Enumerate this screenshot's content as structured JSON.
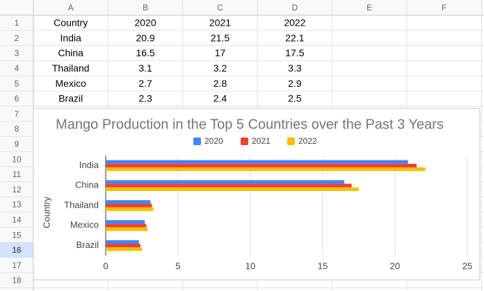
{
  "sheet": {
    "columns": [
      "A",
      "B",
      "C",
      "D",
      "E",
      "F"
    ],
    "row_numbers": [
      "1",
      "2",
      "3",
      "4",
      "5",
      "6",
      "7",
      "8",
      "9",
      "10",
      "11",
      "12",
      "13",
      "14",
      "15",
      "16",
      "17",
      "18"
    ],
    "rows": [
      [
        "Country",
        "2020",
        "2021",
        "2022"
      ],
      [
        "India",
        "20.9",
        "21.5",
        "22.1"
      ],
      [
        "China",
        "16.5",
        "17",
        "17.5"
      ],
      [
        "Thailand",
        "3.1",
        "3.2",
        "3.3"
      ],
      [
        "Mexico",
        "2.7",
        "2.8",
        "2.9"
      ],
      [
        "Brazil",
        "2.3",
        "2.4",
        "2.5"
      ]
    ]
  },
  "chart_data": {
    "type": "bar",
    "orientation": "horizontal",
    "title": "Mango Production in the Top 5 Countries over the Past 3 Years",
    "y_label": "Country",
    "categories": [
      "India",
      "China",
      "Thailand",
      "Mexico",
      "Brazil"
    ],
    "series": [
      {
        "name": "2020",
        "color": "#4285f4",
        "values": [
          20.9,
          16.5,
          3.1,
          2.7,
          2.3
        ]
      },
      {
        "name": "2021",
        "color": "#ea4335",
        "values": [
          21.5,
          17,
          3.2,
          2.8,
          2.4
        ]
      },
      {
        "name": "2022",
        "color": "#fbbc04",
        "values": [
          22.1,
          17.5,
          3.3,
          2.9,
          2.5
        ]
      }
    ],
    "xlim": [
      0,
      25
    ],
    "xticks": [
      0,
      5,
      10,
      15,
      20,
      25
    ],
    "grid": true,
    "legend": "top"
  }
}
